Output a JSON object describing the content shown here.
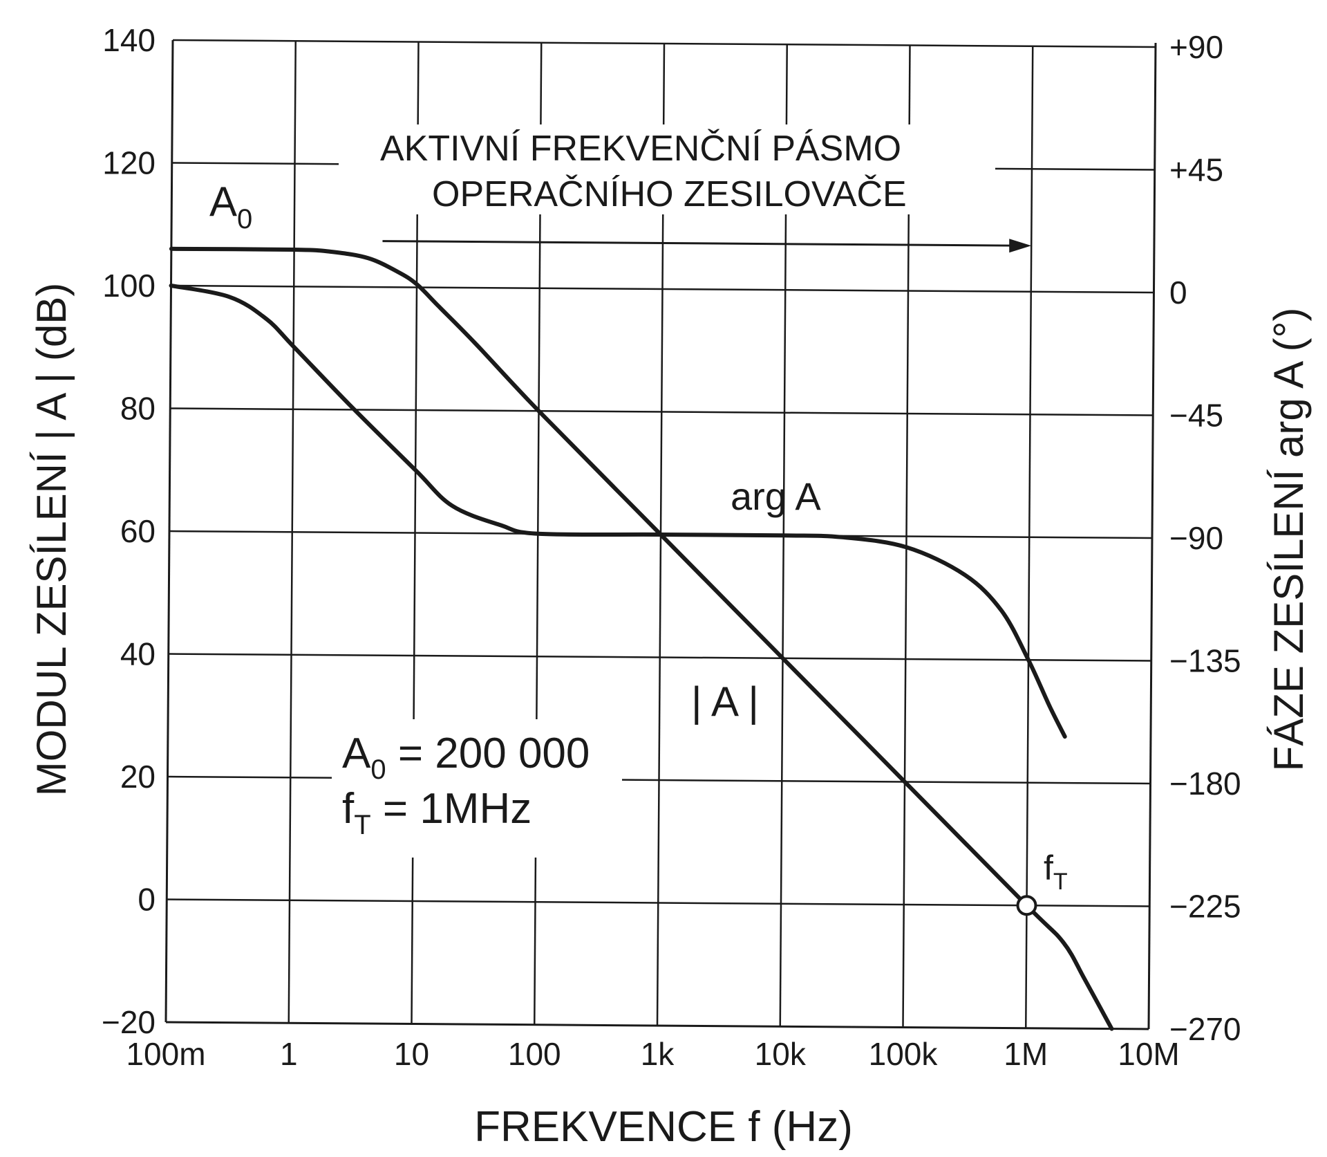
{
  "chart_data": {
    "type": "line",
    "x_scale": "log",
    "xlabel": "FREKVENCE   f  (Hz)",
    "ylabel_left": "MODUL  ZESÍLENÍ  | A |  (dB)",
    "ylabel_right": "FÁZE  ZESÍLENÍ   arg A  (°)",
    "x_tick_labels": [
      "100m",
      "1",
      "10",
      "100",
      "1k",
      "10k",
      "100k",
      "1M",
      "10M"
    ],
    "x_tick_values": [
      0.1,
      1,
      10,
      100,
      1000,
      10000,
      100000,
      1000000,
      10000000
    ],
    "xlim": [
      0.1,
      10000000
    ],
    "ylim_left": [
      -20,
      140
    ],
    "ylim_right": [
      -270,
      90
    ],
    "y_left_tick_labels": [
      "140",
      "120",
      "100",
      "80",
      "60",
      "40",
      "20",
      "0",
      "−20"
    ],
    "y_left_tick_values": [
      140,
      120,
      100,
      80,
      60,
      40,
      20,
      0,
      -20
    ],
    "y_right_tick_labels": [
      "+90",
      "+45",
      "0",
      "−45",
      "−90",
      "−135",
      "−180",
      "−225",
      "−270"
    ],
    "y_right_tick_values": [
      90,
      45,
      0,
      -45,
      -90,
      -135,
      -180,
      -225,
      -270
    ],
    "grid": true,
    "series": [
      {
        "name": "| A |",
        "axis": "left",
        "x": [
          0.1,
          1,
          2,
          4,
          7,
          10,
          15,
          30,
          100,
          1000,
          10000,
          100000,
          1000000,
          2000000,
          3000000,
          5000000
        ],
        "y": [
          106,
          106,
          105.7,
          104.7,
          102.5,
          100.5,
          97,
          91,
          80,
          60,
          40,
          20,
          0,
          -6,
          -12,
          -20
        ]
      },
      {
        "name": "arg A",
        "axis": "right",
        "x": [
          0.1,
          0.3,
          0.6,
          1,
          3,
          10,
          20,
          50,
          100,
          1000,
          10000,
          30000,
          100000,
          300000,
          600000,
          1000000,
          1500000,
          2000000
        ],
        "y": [
          0,
          -4,
          -12,
          -22,
          -44,
          -67,
          -80,
          -87,
          -90,
          -90,
          -90,
          -90.5,
          -94,
          -104,
          -117,
          -135,
          -152,
          -163
        ]
      }
    ],
    "annotations": {
      "band_label_line1": "AKTIVNÍ FREKVENČNÍ PÁSMO",
      "band_label_line2": "OPERAČNÍHO ZESILOVAČE",
      "a0_main": "A",
      "a0_sub": "0",
      "arg_label": "arg A",
      "mag_label": "| A |",
      "params_a0_main": "A",
      "params_a0_sub": "0",
      "params_a0_value": " = 200 000",
      "params_ft_main": "f",
      "params_ft_sub": "T",
      "params_ft_value": "  = 1MHz",
      "ft_marker_main": "f",
      "ft_marker_sub": "T",
      "band_arrow_to_hz": 1000000,
      "band_arrow_from_hz": 10,
      "ft_point": {
        "x": 1000000,
        "y": 0
      }
    }
  }
}
